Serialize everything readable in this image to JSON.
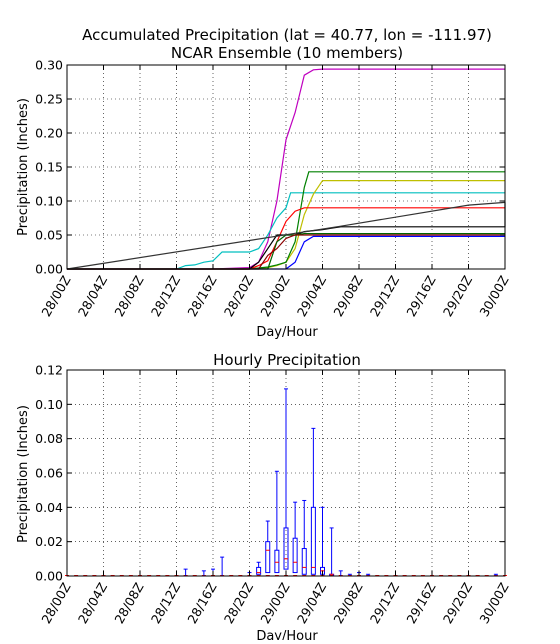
{
  "chart_data": [
    {
      "type": "line",
      "title": "Accumulated Precipitation (lat = 40.77, lon = -111.97)",
      "subtitle": "NCAR Ensemble (10 members)",
      "xlabel": "Day/Hour",
      "ylabel": "Precipitation (Inches)",
      "x_ticks": [
        "28/00Z",
        "28/04Z",
        "28/08Z",
        "28/12Z",
        "28/16Z",
        "28/20Z",
        "29/00Z",
        "29/04Z",
        "29/08Z",
        "29/12Z",
        "29/16Z",
        "29/20Z",
        "30/00Z"
      ],
      "y_ticks": [
        "0.00",
        "0.05",
        "0.10",
        "0.15",
        "0.20",
        "0.25",
        "0.30"
      ],
      "xlim": [
        0,
        48
      ],
      "ylim": [
        0,
        0.3
      ],
      "grid": true,
      "series": [
        {
          "color": "#bf00bf",
          "points": [
            [
              0,
              0
            ],
            [
              16,
              0
            ],
            [
              20,
              0.002
            ],
            [
              21,
              0.01
            ],
            [
              22,
              0.04
            ],
            [
              23,
              0.1
            ],
            [
              24,
              0.19
            ],
            [
              25,
              0.23
            ],
            [
              26,
              0.285
            ],
            [
              27,
              0.293
            ],
            [
              28,
              0.294
            ],
            [
              48,
              0.294
            ]
          ]
        },
        {
          "color": "#00bfbf",
          "points": [
            [
              0,
              0
            ],
            [
              12,
              0
            ],
            [
              13,
              0.005
            ],
            [
              14,
              0.006
            ],
            [
              15,
              0.01
            ],
            [
              16,
              0.012
            ],
            [
              17,
              0.025
            ],
            [
              20,
              0.025
            ],
            [
              21,
              0.03
            ],
            [
              22,
              0.05
            ],
            [
              23,
              0.075
            ],
            [
              24,
              0.09
            ],
            [
              24.5,
              0.112
            ],
            [
              48,
              0.112
            ]
          ]
        },
        {
          "color": "#bfbf00",
          "points": [
            [
              0,
              0
            ],
            [
              20,
              0
            ],
            [
              22,
              0.002
            ],
            [
              23,
              0.005
            ],
            [
              24,
              0.01
            ],
            [
              25,
              0.03
            ],
            [
              26,
              0.08
            ],
            [
              27,
              0.11
            ],
            [
              28,
              0.13
            ],
            [
              48,
              0.13
            ]
          ]
        },
        {
          "color": "#008000",
          "points": [
            [
              0,
              0
            ],
            [
              20,
              0
            ],
            [
              22,
              0.003
            ],
            [
              23,
              0.006
            ],
            [
              24,
              0.01
            ],
            [
              25,
              0.04
            ],
            [
              26,
              0.12
            ],
            [
              26.5,
              0.143
            ],
            [
              48,
              0.143
            ]
          ]
        },
        {
          "color": "#ff0000",
          "points": [
            [
              0,
              0
            ],
            [
              20,
              0
            ],
            [
              21,
              0.005
            ],
            [
              22,
              0.012
            ],
            [
              23,
              0.04
            ],
            [
              24,
              0.07
            ],
            [
              25,
              0.085
            ],
            [
              26,
              0.09
            ],
            [
              48,
              0.09
            ]
          ]
        },
        {
          "color": "#000000",
          "points": [
            [
              0,
              0
            ],
            [
              20,
              0
            ],
            [
              21,
              0.01
            ],
            [
              22,
              0.03
            ],
            [
              23,
              0.05
            ],
            [
              25,
              0.05
            ],
            [
              26,
              0.055
            ],
            [
              28,
              0.058
            ],
            [
              29,
              0.06
            ],
            [
              30,
              0.062
            ],
            [
              48,
              0.062
            ],
            [
              48,
              0.098
            ]
          ]
        },
        {
          "color": "#0000ff",
          "points": [
            [
              0,
              0
            ],
            [
              24,
              0
            ],
            [
              25,
              0.01
            ],
            [
              26,
              0.04
            ],
            [
              27,
              0.048
            ],
            [
              48,
              0.048
            ]
          ]
        },
        {
          "color": "#006400",
          "points": [
            [
              0,
              0
            ],
            [
              22,
              0
            ],
            [
              23,
              0.04
            ],
            [
              24,
              0.05
            ],
            [
              25,
              0.05
            ],
            [
              26,
              0.052
            ],
            [
              48,
              0.052
            ]
          ]
        },
        {
          "color": "#8b0000",
          "points": [
            [
              0,
              0
            ],
            [
              21,
              0
            ],
            [
              22,
              0.02
            ],
            [
              23,
              0.03
            ],
            [
              24,
              0.045
            ],
            [
              25,
              0.05
            ],
            [
              48,
              0.05
            ]
          ]
        },
        {
          "color": "#333333",
          "points": [
            [
              0,
              0
            ],
            [
              30,
              0.063
            ],
            [
              44,
              0.094
            ],
            [
              48,
              0.098
            ]
          ]
        }
      ]
    },
    {
      "type": "box",
      "title": "Hourly Precipitation",
      "xlabel": "Day/Hour",
      "ylabel": "Precipitation (Inches)",
      "x_ticks": [
        "28/00Z",
        "28/04Z",
        "28/08Z",
        "28/12Z",
        "28/16Z",
        "28/20Z",
        "29/00Z",
        "29/04Z",
        "29/08Z",
        "29/12Z",
        "29/16Z",
        "29/20Z",
        "30/00Z"
      ],
      "y_ticks": [
        "0.00",
        "0.02",
        "0.04",
        "0.06",
        "0.08",
        "0.10",
        "0.12"
      ],
      "xlim": [
        0,
        48
      ],
      "ylim": [
        0,
        0.12
      ],
      "grid": true,
      "box_color": "#0000ff",
      "median_color": "#ff0000",
      "boxes": [
        {
          "x": 13,
          "q1": 0,
          "median": 0,
          "q3": 0,
          "whisker_high": 0.004
        },
        {
          "x": 15,
          "q1": 0,
          "median": 0,
          "q3": 0,
          "whisker_high": 0.003
        },
        {
          "x": 16,
          "q1": 0,
          "median": 0,
          "q3": 0,
          "whisker_high": 0.004
        },
        {
          "x": 17,
          "q1": 0,
          "median": 0,
          "q3": 0,
          "whisker_high": 0.011
        },
        {
          "x": 20,
          "q1": 0,
          "median": 0,
          "q3": 0,
          "whisker_high": 0.002
        },
        {
          "x": 21,
          "q1": 0.001,
          "median": 0.002,
          "q3": 0.005,
          "whisker_high": 0.008
        },
        {
          "x": 22,
          "q1": 0.002,
          "median": 0.015,
          "q3": 0.02,
          "whisker_high": 0.032
        },
        {
          "x": 23,
          "q1": 0.002,
          "median": 0.008,
          "q3": 0.015,
          "whisker_high": 0.061
        },
        {
          "x": 24,
          "q1": 0.004,
          "median": 0.01,
          "q3": 0.028,
          "whisker_high": 0.109
        },
        {
          "x": 25,
          "q1": 0.002,
          "median": 0.008,
          "q3": 0.022,
          "whisker_high": 0.043
        },
        {
          "x": 26,
          "q1": 0.001,
          "median": 0.005,
          "q3": 0.016,
          "whisker_high": 0.044
        },
        {
          "x": 27,
          "q1": 0.001,
          "median": 0.005,
          "q3": 0.04,
          "whisker_high": 0.086
        },
        {
          "x": 28,
          "q1": 0.001,
          "median": 0.003,
          "q3": 0.005,
          "whisker_high": 0.04
        },
        {
          "x": 29,
          "q1": 0,
          "median": 0.001,
          "q3": 0.001,
          "whisker_high": 0.028
        },
        {
          "x": 30,
          "q1": 0,
          "median": 0,
          "q3": 0,
          "whisker_high": 0.003
        },
        {
          "x": 31,
          "q1": 0,
          "median": 0,
          "q3": 0,
          "whisker_high": 0.001
        },
        {
          "x": 32,
          "q1": 0,
          "median": 0,
          "q3": 0,
          "whisker_high": 0.002
        },
        {
          "x": 33,
          "q1": 0,
          "median": 0,
          "q3": 0,
          "whisker_high": 0.001
        },
        {
          "x": 47,
          "q1": 0,
          "median": 0,
          "q3": 0,
          "whisker_high": 0.001
        }
      ]
    }
  ]
}
